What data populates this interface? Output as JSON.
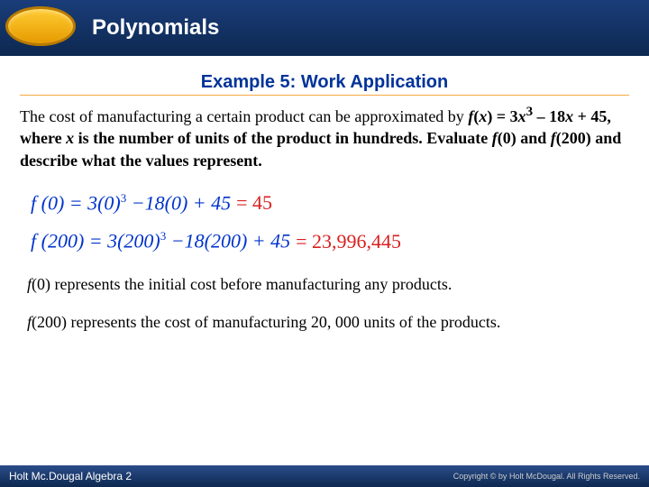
{
  "header": {
    "title": "Polynomials"
  },
  "example": {
    "title": "Example 5: Work Application"
  },
  "problem": {
    "t1": "The cost of manufacturing a certain product can be approximated by ",
    "t2": "f",
    "t3": "(",
    "t4": "x",
    "t5": ") = 3",
    "t6": "x",
    "t7": "3",
    "t8": " – 18",
    "t9": "x",
    "t10": " + 45, where ",
    "t11": "x",
    "t12": " is the number of units of the product in hundreds. Evaluate ",
    "t13": "f",
    "t14": "(0) and ",
    "t15": "f",
    "t16": "(200) and describe what the values represent."
  },
  "eq1": {
    "lhs": "f (0) = 3(0)",
    "sup": "3",
    "mid": " −18(0) + 45 ",
    "rhs": "= 45"
  },
  "eq2": {
    "lhs": "f (200) = 3(200)",
    "sup": "3",
    "mid": " −18(200) + 45 ",
    "rhs": "= 23,996,445"
  },
  "interp1": {
    "t1": "f",
    "t2": "(0) represents the initial cost before manufacturing any products."
  },
  "interp2": {
    "t1": "f",
    "t2": "(200) represents the cost of manufacturing 20, 000 units of the products."
  },
  "footer": {
    "left": "Holt Mc.Dougal Algebra 2",
    "right": "Copyright © by Holt McDougal. All Rights Reserved."
  }
}
